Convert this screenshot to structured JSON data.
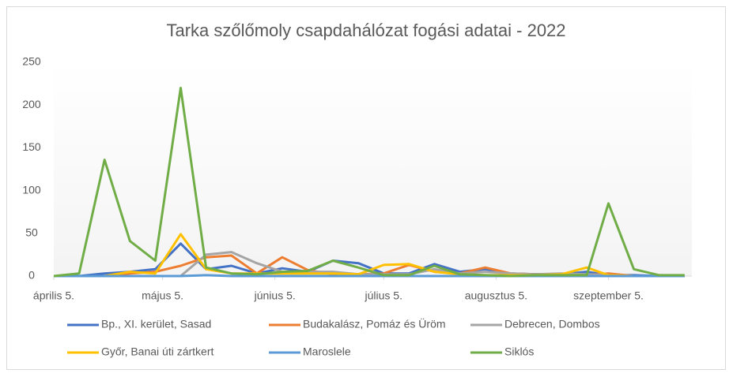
{
  "chart_data": {
    "type": "line",
    "title": "Tarka szőlőmoly csapdahálózat fogási adatai - 2022",
    "x": [
      "2022-04-05",
      "2022-04-12",
      "2022-04-19",
      "2022-04-26",
      "2022-05-03",
      "2022-05-10",
      "2022-05-17",
      "2022-05-24",
      "2022-05-31",
      "2022-06-07",
      "2022-06-14",
      "2022-06-21",
      "2022-06-28",
      "2022-07-05",
      "2022-07-12",
      "2022-07-19",
      "2022-07-26",
      "2022-08-02",
      "2022-08-09",
      "2022-08-16",
      "2022-08-23",
      "2022-08-30",
      "2022-09-05",
      "2022-09-12",
      "2022-09-19",
      "2022-09-26"
    ],
    "xlim": [
      "2022-04-05",
      "2022-09-28"
    ],
    "xticks": [
      {
        "value": "2022-04-05",
        "label": "április 5."
      },
      {
        "value": "2022-05-05",
        "label": "május 5."
      },
      {
        "value": "2022-06-05",
        "label": "június 5."
      },
      {
        "value": "2022-07-05",
        "label": "július 5."
      },
      {
        "value": "2022-08-05",
        "label": "augusztus 5."
      },
      {
        "value": "2022-09-05",
        "label": "szeptember 5."
      }
    ],
    "ylim": [
      0,
      250
    ],
    "yticks": [
      0,
      50,
      100,
      150,
      200,
      250
    ],
    "grid": false,
    "legend": "bottom",
    "series": [
      {
        "name": "Bp., XI. kerület, Sasad",
        "color": "#4472c4",
        "values": [
          0,
          0,
          3,
          5,
          8,
          38,
          8,
          12,
          3,
          9,
          5,
          18,
          15,
          3,
          3,
          14,
          5,
          8,
          3,
          2,
          2,
          5,
          1,
          1,
          0,
          0
        ]
      },
      {
        "name": "Budakalász, Pomáz és Üröm",
        "color": "#ed7d31",
        "values": [
          0,
          0,
          0,
          3,
          5,
          12,
          22,
          24,
          3,
          22,
          7,
          2,
          2,
          3,
          13,
          5,
          3,
          10,
          3,
          2,
          2,
          1,
          3,
          0,
          0,
          0
        ]
      },
      {
        "name": "Debrecen, Dombos",
        "color": "#a5a5a5",
        "values": [
          0,
          0,
          0,
          0,
          0,
          0,
          25,
          28,
          15,
          5,
          5,
          5,
          2,
          2,
          2,
          8,
          3,
          5,
          3,
          2,
          3,
          2,
          1,
          0,
          0,
          0
        ]
      },
      {
        "name": "Győr, Banai úti zártkert",
        "color": "#ffc000",
        "values": [
          0,
          0,
          0,
          5,
          3,
          49,
          8,
          3,
          3,
          3,
          3,
          3,
          2,
          13,
          14,
          5,
          2,
          1,
          1,
          1,
          2,
          10,
          1,
          0,
          0,
          0
        ]
      },
      {
        "name": "Maroslele",
        "color": "#5b9bd5",
        "values": [
          0,
          0,
          0,
          0,
          0,
          0,
          1,
          0,
          0,
          0,
          0,
          0,
          0,
          0,
          0,
          0,
          0,
          0,
          0,
          0,
          0,
          0,
          0,
          0,
          0,
          0
        ]
      },
      {
        "name": "Siklós",
        "color": "#70ad47",
        "values": [
          0,
          3,
          136,
          41,
          18,
          220,
          10,
          3,
          2,
          5,
          6,
          18,
          10,
          1,
          1,
          12,
          2,
          1,
          0,
          1,
          1,
          1,
          85,
          8,
          1,
          1
        ]
      }
    ]
  }
}
